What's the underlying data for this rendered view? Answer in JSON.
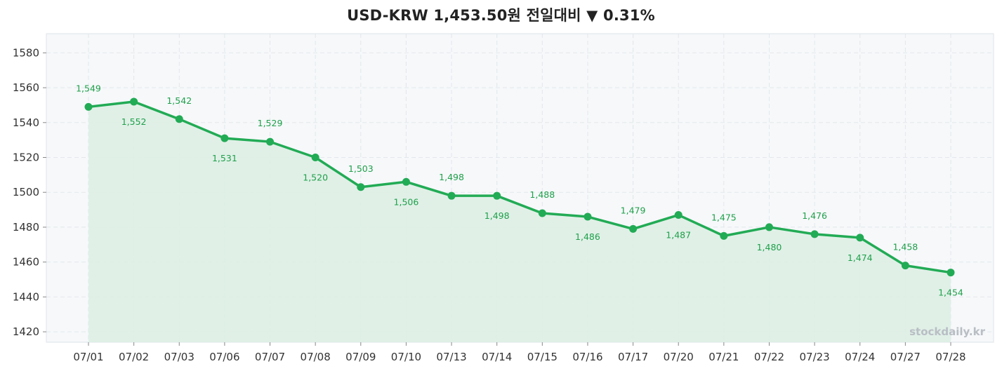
{
  "header": {
    "title": "USD-KRW  1,453.50원  전일대비 ▼ 0.31%"
  },
  "watermark": "stockdaily.kr",
  "colors": {
    "line": "#22ab55",
    "area": "#dcefe3",
    "plot_bg": "#f6f8fa",
    "grid": "#e3e7eb",
    "label": "#1fa04a"
  },
  "chart_data": {
    "type": "line",
    "title": "USD-KRW  1,453.50원  전일대비 ▼ 0.31%",
    "x": [
      "07/01",
      "07/02",
      "07/03",
      "07/06",
      "07/07",
      "07/08",
      "07/09",
      "07/10",
      "07/13",
      "07/14",
      "07/15",
      "07/16",
      "07/17",
      "07/20",
      "07/21",
      "07/22",
      "07/23",
      "07/24",
      "07/27",
      "07/28"
    ],
    "series": [
      {
        "values": [
          1549,
          1552,
          1542,
          1531,
          1529,
          1520,
          1503,
          1506,
          1498,
          1498,
          1488,
          1486,
          1479,
          1487,
          1475,
          1480,
          1476,
          1474,
          1458,
          1454
        ],
        "labels": [
          "1,549",
          "1,552",
          "1,542",
          "1,531",
          "1,529",
          "1,520",
          "1,503",
          "1,506",
          "1,498",
          "1,498",
          "1,488",
          "1,486",
          "1,479",
          "1,487",
          "1,475",
          "1,480",
          "1,476",
          "1,474",
          "1,458",
          "1,454"
        ]
      }
    ],
    "yticks": [
      1420,
      1440,
      1460,
      1480,
      1500,
      1520,
      1540,
      1560,
      1580
    ],
    "ylim": [
      1414,
      1591
    ],
    "grid": true,
    "area_fill": true,
    "legend": "none"
  }
}
